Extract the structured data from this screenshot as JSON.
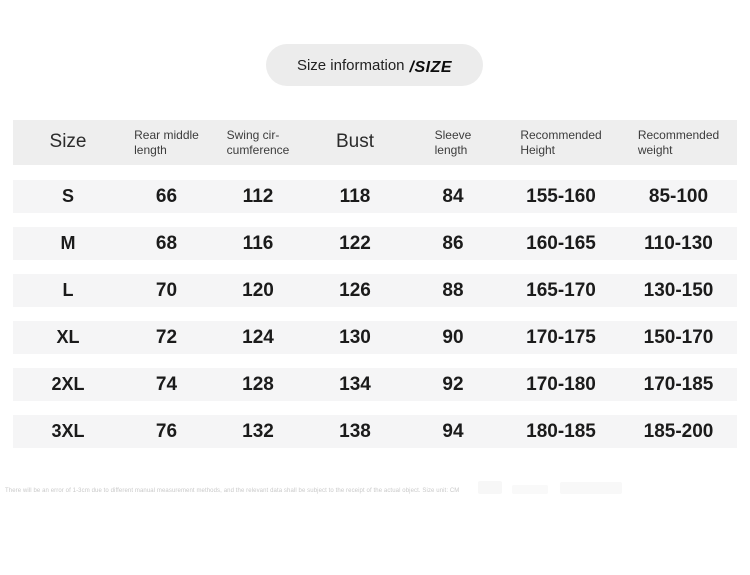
{
  "title": {
    "main": "Size information",
    "suffix": "/SIZE"
  },
  "footnote": {
    "text": "There will be an error of 1-3cm due to different manual measurement methods, and the relevant data shall be subject to the receipt of the actual object.  Size unit: CM"
  },
  "colors": {
    "page_background": "#ffffff",
    "pill_background": "#ececec",
    "header_band": "#eeeeee",
    "row_band": "#f5f5f6",
    "value_text": "#1b1b1b",
    "footnote_text": "#c9c9c9"
  },
  "table": {
    "columns": [
      {
        "key": "size",
        "large": true,
        "lines": [
          "Size"
        ]
      },
      {
        "key": "rear-middle-length",
        "large": false,
        "lines": [
          "Rear middle",
          "length"
        ]
      },
      {
        "key": "swing-circumference",
        "large": false,
        "lines": [
          "Swing cir-",
          "cumference"
        ]
      },
      {
        "key": "bust",
        "large": true,
        "lines": [
          "Bust"
        ]
      },
      {
        "key": "sleeve-length",
        "large": false,
        "lines": [
          "Sleeve",
          "length"
        ]
      },
      {
        "key": "recommended-height",
        "large": false,
        "lines": [
          "Recommended",
          "Height"
        ]
      },
      {
        "key": "recommended-weight",
        "large": false,
        "lines": [
          "Recommended",
          "weight"
        ]
      }
    ],
    "rows": [
      {
        "cells": [
          "S",
          "66",
          "112",
          "118",
          "84",
          "155-160",
          "85-100"
        ]
      },
      {
        "cells": [
          "M",
          "68",
          "116",
          "122",
          "86",
          "160-165",
          "110-130"
        ]
      },
      {
        "cells": [
          "L",
          "70",
          "120",
          "126",
          "88",
          "165-170",
          "130-150"
        ]
      },
      {
        "cells": [
          "XL",
          "72",
          "124",
          "130",
          "90",
          "170-175",
          "150-170"
        ]
      },
      {
        "cells": [
          "2XL",
          "74",
          "128",
          "134",
          "92",
          "170-180",
          "170-185"
        ]
      },
      {
        "cells": [
          "3XL",
          "76",
          "132",
          "138",
          "94",
          "180-185",
          "185-200"
        ]
      }
    ]
  },
  "chart_data": {
    "type": "table",
    "title": "Size information /SIZE",
    "columns": [
      "Size",
      "Rear middle length",
      "Swing circumference",
      "Bust",
      "Sleeve length",
      "Recommended Height",
      "Recommended weight"
    ],
    "rows": [
      [
        "S",
        66,
        112,
        118,
        84,
        "155-160",
        "85-100"
      ],
      [
        "M",
        68,
        116,
        122,
        86,
        "160-165",
        "110-130"
      ],
      [
        "L",
        70,
        120,
        126,
        88,
        "165-170",
        "130-150"
      ],
      [
        "XL",
        72,
        124,
        130,
        90,
        "170-175",
        "150-170"
      ],
      [
        "2XL",
        74,
        128,
        134,
        92,
        "170-180",
        "170-185"
      ],
      [
        "3XL",
        76,
        132,
        138,
        94,
        "180-185",
        "185-200"
      ]
    ],
    "unit": "CM",
    "note": "There will be an error of 1-3cm due to different manual measurement methods, and the relevant data shall be subject to the receipt of the actual object.  Size unit: CM"
  }
}
